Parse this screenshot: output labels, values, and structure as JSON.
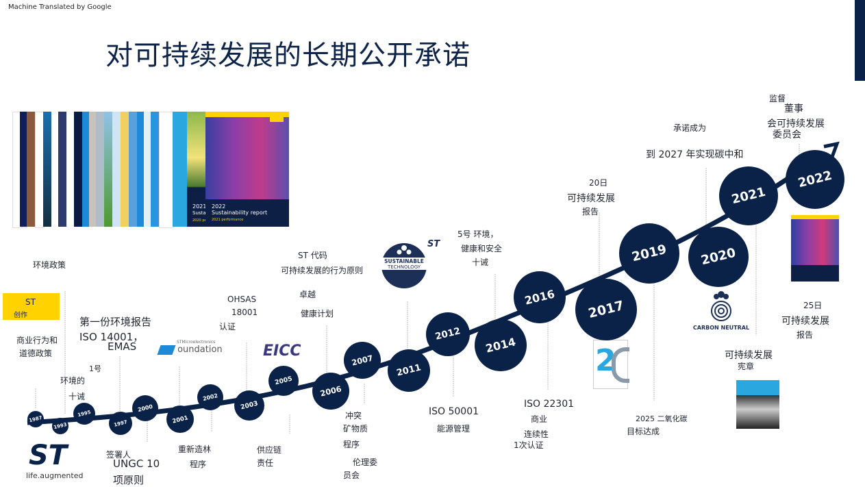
{
  "header": {
    "machine_translated": "Machine Translated by Google",
    "title": "对可持续发展的长期公开承诺"
  },
  "colors": {
    "navy": "#0a2148",
    "yellow": "#ffd200",
    "blue": "#1d8ad8"
  },
  "covers": {
    "report_2022_title": "2022",
    "report_2022_sub": "Sustainability report",
    "report_2022_perf": "2021 performance",
    "report_2021_title": "2021",
    "report_2021_sub": "Susta",
    "report_2021_perf": "2020 pe"
  },
  "years": [
    "1987",
    "1993",
    "1995",
    "1997",
    "2000",
    "2001",
    "2002",
    "2003",
    "2005",
    "2006",
    "2007",
    "2011",
    "2012",
    "2014",
    "2016",
    "2017",
    "2019",
    "2020",
    "2021",
    "2022"
  ],
  "labels": {
    "env_policy": "环境政策",
    "st_created_1": "ST",
    "st_created_2": "创作",
    "business_1": "商业行为和",
    "business_2": "道德政策",
    "env_1": "环境的",
    "env_2": "十诫",
    "first_report": "第一份环境报告",
    "iso14001": "ISO 14001，",
    "emas": "EMAS",
    "num1": "1号",
    "ohsas": "OHSAS",
    "ohsas_num": "18001",
    "cert": "认证",
    "foundation": "oundation",
    "foundation_small": "STMicroelectronics",
    "eicc": "EICC",
    "st_code": "ST 代码",
    "st_code_2": "可持续发展的行为原则",
    "excellence": "卓越",
    "health_plan": "健康计划",
    "sustainable_tech_1": "SUSTAINABLE",
    "sustainable_tech_2": "TECHNOLOGY",
    "five_1": "5号  环境，",
    "five_2": "健康和安全",
    "five_3": "十诫",
    "signatory": "签署人",
    "ungc": "UNGC 10",
    "principles": "项原则",
    "reforest_1": "重新造林",
    "reforest_2": "程序",
    "supply_1": "供应链",
    "supply_2": "责任",
    "conflict_1": "冲突",
    "conflict_2": "矿物质",
    "conflict_3": "程序",
    "ethics_1": "伦理委",
    "ethics_2": "员会",
    "iso50001": "ISO 50001",
    "energy": "能源管理",
    "iso22301": "ISO 22301",
    "bc_1": "商业",
    "bc_2": "连续性",
    "bc_3": "1次认证",
    "r20_1": "20日",
    "r20_2": "可持续发展",
    "r20_3": "报告",
    "co2_1": "2025 二氧化碳",
    "co2_2": "目标达成",
    "commit": "承诺成为",
    "carbon_2027": "到 2027 年实现碳中和",
    "carbon_neutral": "CARBON  NEUTRAL",
    "charter_1": "可持续发展",
    "charter_2": "宪章",
    "board_1": "监督",
    "board_2": "董事",
    "board_3": "会可持续发展",
    "board_4": "委员会",
    "r25_1": "25日",
    "r25_2": "可持续发展",
    "r25_3": "报告",
    "st_tagline": "life.augmented"
  }
}
